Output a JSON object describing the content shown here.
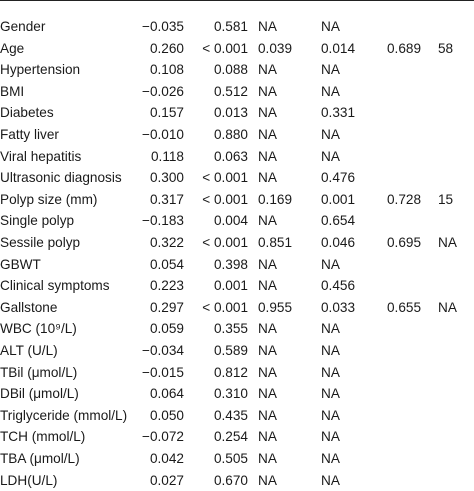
{
  "table": {
    "rows": [
      {
        "variable": "Gender",
        "r": "−0.035",
        "p": "0.581",
        "col3": "NA",
        "col4": "NA",
        "col5": "",
        "col6": ""
      },
      {
        "variable": "Age",
        "r": "0.260",
        "p": "< 0.001",
        "col3": "0.039",
        "col4": "0.014",
        "col5": "0.689",
        "col6": "58"
      },
      {
        "variable": "Hypertension",
        "r": "0.108",
        "p": "0.088",
        "col3": "NA",
        "col4": "NA",
        "col5": "",
        "col6": ""
      },
      {
        "variable": "BMI",
        "r": "−0.026",
        "p": "0.512",
        "col3": "NA",
        "col4": "NA",
        "col5": "",
        "col6": ""
      },
      {
        "variable": "Diabetes",
        "r": "0.157",
        "p": "0.013",
        "col3": "NA",
        "col4": "0.331",
        "col5": "",
        "col6": ""
      },
      {
        "variable": "Fatty liver",
        "r": "−0.010",
        "p": "0.880",
        "col3": "NA",
        "col4": "NA",
        "col5": "",
        "col6": ""
      },
      {
        "variable": "Viral hepatitis",
        "r": "0.118",
        "p": "0.063",
        "col3": "NA",
        "col4": "NA",
        "col5": "",
        "col6": ""
      },
      {
        "variable": "Ultrasonic diagnosis",
        "r": "0.300",
        "p": "< 0.001",
        "col3": "NA",
        "col4": "0.476",
        "col5": "",
        "col6": ""
      },
      {
        "variable": "Polyp size (mm)",
        "r": "0.317",
        "p": "< 0.001",
        "col3": "0.169",
        "col4": "0.001",
        "col5": "0.728",
        "col6": "15"
      },
      {
        "variable": "Single polyp",
        "r": "−0.183",
        "p": "0.004",
        "col3": "NA",
        "col4": "0.654",
        "col5": "",
        "col6": ""
      },
      {
        "variable": "Sessile polyp",
        "r": "0.322",
        "p": "< 0.001",
        "col3": "0.851",
        "col4": "0.046",
        "col5": "0.695",
        "col6": "NA"
      },
      {
        "variable": "GBWT",
        "r": "0.054",
        "p": "0.398",
        "col3": "NA",
        "col4": "NA",
        "col5": "",
        "col6": ""
      },
      {
        "variable": "Clinical symptoms",
        "r": "0.223",
        "p": "0.001",
        "col3": "NA",
        "col4": "0.456",
        "col5": "",
        "col6": ""
      },
      {
        "variable": "Gallstone",
        "r": "0.297",
        "p": "< 0.001",
        "col3": "0.955",
        "col4": "0.033",
        "col5": "0.655",
        "col6": "NA"
      },
      {
        "variable": "WBC (10⁹/L)",
        "r": "0.059",
        "p": "0.355",
        "col3": "NA",
        "col4": "NA",
        "col5": "",
        "col6": ""
      },
      {
        "variable": "ALT (U/L)",
        "r": "−0.034",
        "p": "0.589",
        "col3": "NA",
        "col4": "NA",
        "col5": "",
        "col6": ""
      },
      {
        "variable": "TBil (μmol/L)",
        "r": "−0.015",
        "p": "0.812",
        "col3": "NA",
        "col4": "NA",
        "col5": "",
        "col6": ""
      },
      {
        "variable": "DBil (μmol/L)",
        "r": "0.064",
        "p": "0.310",
        "col3": "NA",
        "col4": "NA",
        "col5": "",
        "col6": ""
      },
      {
        "variable": "Triglyceride (mmol/L)",
        "r": "0.050",
        "p": "0.435",
        "col3": "NA",
        "col4": "NA",
        "col5": "",
        "col6": ""
      },
      {
        "variable": "TCH (mmol/L)",
        "r": "−0.072",
        "p": "0.254",
        "col3": "NA",
        "col4": "NA",
        "col5": "",
        "col6": ""
      },
      {
        "variable": "TBA (μmol/L)",
        "r": "0.042",
        "p": "0.505",
        "col3": "NA",
        "col4": "NA",
        "col5": "",
        "col6": ""
      },
      {
        "variable": "LDH(U/L)",
        "r": "0.027",
        "p": "0.670",
        "col3": "NA",
        "col4": "NA",
        "col5": "",
        "col6": ""
      }
    ]
  }
}
